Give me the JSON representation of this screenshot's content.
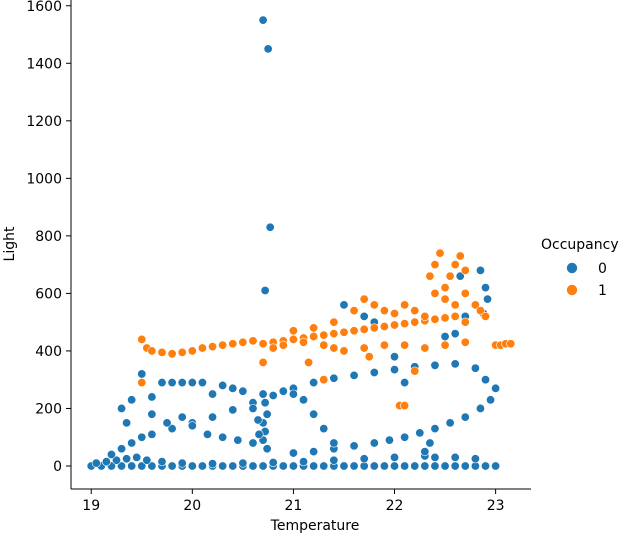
{
  "chart_data": {
    "type": "scatter",
    "title": "",
    "xlabel": "Temperature",
    "ylabel": "Light",
    "xlim": [
      18.8,
      23.35
    ],
    "ylim": [
      -80,
      1620
    ],
    "xticks": [
      19,
      20,
      21,
      22,
      23
    ],
    "xtick_labels": [
      "19",
      "20",
      "21",
      "22",
      "23"
    ],
    "yticks": [
      0,
      200,
      400,
      600,
      800,
      1000,
      1200,
      1400,
      1600
    ],
    "ytick_labels": [
      "0",
      "200",
      "400",
      "600",
      "800",
      "1000",
      "1200",
      "1400",
      "1600"
    ],
    "grid": false,
    "legend": {
      "title": "Occupancy",
      "placement": "right",
      "entries": [
        {
          "label": "0",
          "color": "#1f77b4"
        },
        {
          "label": "1",
          "color": "#ff7f0e"
        }
      ]
    },
    "series": [
      {
        "name": "0",
        "color": "#1f77b4",
        "points": [
          [
            19.0,
            0
          ],
          [
            19.1,
            0
          ],
          [
            19.2,
            0
          ],
          [
            19.3,
            0
          ],
          [
            19.4,
            0
          ],
          [
            19.5,
            0
          ],
          [
            19.6,
            0
          ],
          [
            19.7,
            0
          ],
          [
            19.8,
            0
          ],
          [
            19.9,
            0
          ],
          [
            20.0,
            0
          ],
          [
            20.1,
            0
          ],
          [
            20.2,
            0
          ],
          [
            20.3,
            0
          ],
          [
            20.4,
            0
          ],
          [
            20.5,
            0
          ],
          [
            20.6,
            0
          ],
          [
            20.7,
            0
          ],
          [
            20.8,
            0
          ],
          [
            20.9,
            0
          ],
          [
            21.0,
            0
          ],
          [
            21.1,
            0
          ],
          [
            21.2,
            0
          ],
          [
            21.3,
            0
          ],
          [
            21.4,
            0
          ],
          [
            21.5,
            0
          ],
          [
            21.6,
            0
          ],
          [
            21.7,
            0
          ],
          [
            21.8,
            0
          ],
          [
            21.9,
            0
          ],
          [
            22.0,
            0
          ],
          [
            22.1,
            0
          ],
          [
            22.2,
            0
          ],
          [
            22.3,
            0
          ],
          [
            22.4,
            0
          ],
          [
            22.5,
            0
          ],
          [
            22.6,
            0
          ],
          [
            22.7,
            0
          ],
          [
            22.8,
            0
          ],
          [
            22.9,
            0
          ],
          [
            23.0,
            0
          ],
          [
            19.05,
            10
          ],
          [
            19.15,
            15
          ],
          [
            19.25,
            20
          ],
          [
            19.35,
            25
          ],
          [
            19.45,
            30
          ],
          [
            19.55,
            20
          ],
          [
            19.7,
            15
          ],
          [
            19.9,
            10
          ],
          [
            20.2,
            8
          ],
          [
            20.5,
            10
          ],
          [
            20.8,
            12
          ],
          [
            21.1,
            15
          ],
          [
            21.4,
            20
          ],
          [
            21.7,
            25
          ],
          [
            22.0,
            30
          ],
          [
            22.3,
            35
          ],
          [
            22.6,
            30
          ],
          [
            22.8,
            25
          ],
          [
            19.2,
            40
          ],
          [
            19.3,
            60
          ],
          [
            19.4,
            80
          ],
          [
            19.5,
            100
          ],
          [
            19.6,
            110
          ],
          [
            19.8,
            130
          ],
          [
            20.0,
            150
          ],
          [
            20.2,
            170
          ],
          [
            20.4,
            195
          ],
          [
            20.6,
            220
          ],
          [
            20.8,
            245
          ],
          [
            21.0,
            270
          ],
          [
            21.2,
            290
          ],
          [
            21.4,
            305
          ],
          [
            21.6,
            315
          ],
          [
            21.8,
            325
          ],
          [
            22.0,
            335
          ],
          [
            22.2,
            345
          ],
          [
            22.4,
            350
          ],
          [
            22.6,
            355
          ],
          [
            22.8,
            340
          ],
          [
            22.9,
            300
          ],
          [
            23.0,
            270
          ],
          [
            22.95,
            230
          ],
          [
            22.85,
            200
          ],
          [
            22.7,
            170
          ],
          [
            22.55,
            150
          ],
          [
            22.4,
            130
          ],
          [
            22.25,
            115
          ],
          [
            22.1,
            100
          ],
          [
            21.95,
            90
          ],
          [
            21.8,
            80
          ],
          [
            21.6,
            70
          ],
          [
            21.4,
            60
          ],
          [
            21.2,
            50
          ],
          [
            21.0,
            45
          ],
          [
            20.7,
            250
          ],
          [
            20.72,
            220
          ],
          [
            20.74,
            180
          ],
          [
            20.7,
            150
          ],
          [
            20.72,
            120
          ],
          [
            20.7,
            90
          ],
          [
            20.74,
            60
          ],
          [
            20.6,
            200
          ],
          [
            20.65,
            160
          ],
          [
            20.66,
            110
          ],
          [
            19.3,
            200
          ],
          [
            19.35,
            150
          ],
          [
            19.4,
            230
          ],
          [
            19.5,
            320
          ],
          [
            19.6,
            240
          ],
          [
            19.7,
            290
          ],
          [
            19.8,
            290
          ],
          [
            19.9,
            290
          ],
          [
            20.0,
            290
          ],
          [
            20.1,
            290
          ],
          [
            20.2,
            250
          ],
          [
            20.3,
            280
          ],
          [
            20.4,
            270
          ],
          [
            20.5,
            260
          ],
          [
            19.6,
            180
          ],
          [
            19.75,
            150
          ],
          [
            19.9,
            170
          ],
          [
            20.0,
            140
          ],
          [
            20.15,
            110
          ],
          [
            20.3,
            100
          ],
          [
            20.45,
            90
          ],
          [
            20.6,
            80
          ],
          [
            21.3,
            130
          ],
          [
            21.4,
            80
          ],
          [
            21.2,
            180
          ],
          [
            21.1,
            230
          ],
          [
            20.9,
            260
          ],
          [
            21.0,
            250
          ],
          [
            21.6,
            540
          ],
          [
            21.5,
            560
          ],
          [
            21.7,
            520
          ],
          [
            21.8,
            500
          ],
          [
            22.0,
            380
          ],
          [
            22.1,
            290
          ],
          [
            22.5,
            450
          ],
          [
            22.6,
            460
          ],
          [
            22.7,
            520
          ],
          [
            22.8,
            560
          ],
          [
            22.85,
            680
          ],
          [
            22.9,
            620
          ],
          [
            22.92,
            580
          ],
          [
            22.88,
            530
          ],
          [
            22.7,
            600
          ],
          [
            22.65,
            660
          ],
          [
            22.3,
            50
          ],
          [
            22.35,
            80
          ],
          [
            22.4,
            30
          ],
          [
            20.7,
            1550
          ],
          [
            20.75,
            1450
          ],
          [
            20.77,
            830
          ],
          [
            20.72,
            610
          ]
        ]
      },
      {
        "name": "1",
        "color": "#ff7f0e",
        "points": [
          [
            19.5,
            440
          ],
          [
            19.55,
            410
          ],
          [
            19.6,
            400
          ],
          [
            19.7,
            395
          ],
          [
            19.8,
            390
          ],
          [
            19.9,
            395
          ],
          [
            20.0,
            400
          ],
          [
            20.1,
            410
          ],
          [
            20.2,
            415
          ],
          [
            20.3,
            420
          ],
          [
            20.4,
            425
          ],
          [
            20.5,
            430
          ],
          [
            20.6,
            435
          ],
          [
            20.7,
            425
          ],
          [
            20.8,
            430
          ],
          [
            20.9,
            435
          ],
          [
            21.0,
            440
          ],
          [
            21.1,
            445
          ],
          [
            21.2,
            450
          ],
          [
            21.3,
            455
          ],
          [
            21.4,
            460
          ],
          [
            21.5,
            465
          ],
          [
            21.6,
            470
          ],
          [
            21.7,
            475
          ],
          [
            21.8,
            480
          ],
          [
            21.9,
            485
          ],
          [
            22.0,
            490
          ],
          [
            22.1,
            495
          ],
          [
            22.2,
            500
          ],
          [
            22.3,
            505
          ],
          [
            22.4,
            510
          ],
          [
            22.5,
            515
          ],
          [
            22.6,
            520
          ],
          [
            22.7,
            500
          ],
          [
            21.0,
            470
          ],
          [
            21.2,
            480
          ],
          [
            21.4,
            500
          ],
          [
            21.6,
            540
          ],
          [
            21.7,
            580
          ],
          [
            21.8,
            560
          ],
          [
            21.9,
            540
          ],
          [
            22.0,
            530
          ],
          [
            22.1,
            560
          ],
          [
            22.2,
            540
          ],
          [
            22.3,
            520
          ],
          [
            22.4,
            600
          ],
          [
            22.5,
            620
          ],
          [
            22.55,
            660
          ],
          [
            22.6,
            700
          ],
          [
            22.65,
            730
          ],
          [
            22.7,
            680
          ],
          [
            22.45,
            740
          ],
          [
            22.4,
            700
          ],
          [
            22.35,
            660
          ],
          [
            22.5,
            580
          ],
          [
            22.6,
            560
          ],
          [
            22.7,
            600
          ],
          [
            22.8,
            560
          ],
          [
            22.85,
            540
          ],
          [
            22.9,
            520
          ],
          [
            21.5,
            400
          ],
          [
            21.7,
            410
          ],
          [
            21.9,
            420
          ],
          [
            22.1,
            420
          ],
          [
            22.3,
            410
          ],
          [
            22.5,
            420
          ],
          [
            22.7,
            430
          ],
          [
            21.3,
            420
          ],
          [
            21.4,
            410
          ],
          [
            21.1,
            430
          ],
          [
            20.9,
            420
          ],
          [
            20.8,
            410
          ],
          [
            23.0,
            420
          ],
          [
            23.05,
            420
          ],
          [
            23.1,
            425
          ],
          [
            23.15,
            425
          ],
          [
            19.5,
            290
          ],
          [
            20.7,
            360
          ],
          [
            21.15,
            360
          ],
          [
            21.75,
            380
          ],
          [
            21.3,
            300
          ],
          [
            22.05,
            210
          ],
          [
            22.1,
            210
          ],
          [
            22.2,
            330
          ]
        ]
      }
    ]
  }
}
